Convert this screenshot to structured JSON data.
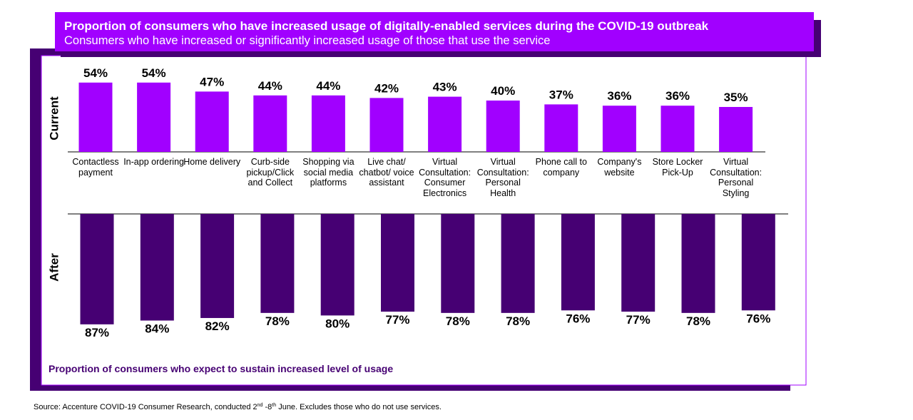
{
  "header": {
    "title": "Proportion of consumers who have increased usage of digitally-enabled services during the COVID-19 outbreak",
    "subtitle": "Consumers who have increased or significantly increased usage of those that use the service"
  },
  "chart_data": [
    {
      "type": "bar",
      "name": "Current",
      "direction": "up",
      "color": "#a100ff",
      "ylim": [
        0,
        60
      ],
      "categories": [
        "Contactless payment",
        "In-app ordering",
        "Home delivery",
        "Curb-side pickup/Click and Collect",
        "Shopping via social media platforms",
        "Live chat/ chatbot/ voice assistant",
        "Virtual Consultation: Consumer Electronics",
        "Virtual Consultation: Personal Health",
        "Phone call to company",
        "Company's website",
        "Store Locker Pick-Up",
        "Virtual Consultation: Personal Styling"
      ],
      "values": [
        54,
        54,
        47,
        44,
        44,
        42,
        43,
        40,
        37,
        36,
        36,
        35
      ],
      "value_labels": [
        "54%",
        "54%",
        "47%",
        "44%",
        "44%",
        "42%",
        "43%",
        "40%",
        "37%",
        "36%",
        "36%",
        "35%"
      ]
    },
    {
      "type": "bar",
      "name": "After",
      "direction": "down",
      "color": "#460073",
      "ylim": [
        0,
        100
      ],
      "values": [
        87,
        84,
        82,
        78,
        80,
        77,
        78,
        78,
        76,
        77,
        78,
        76
      ],
      "value_labels": [
        "87%",
        "84%",
        "82%",
        "78%",
        "80%",
        "77%",
        "78%",
        "78%",
        "76%",
        "77%",
        "78%",
        "76%"
      ]
    }
  ],
  "footnote": "Proportion of consumers who expect to sustain increased level of usage",
  "source": [
    "Source: Accenture COVID-19 Consumer Research, conducted 2",
    "nd",
    " -8",
    "th",
    " June. Excludes those who do not use services."
  ]
}
